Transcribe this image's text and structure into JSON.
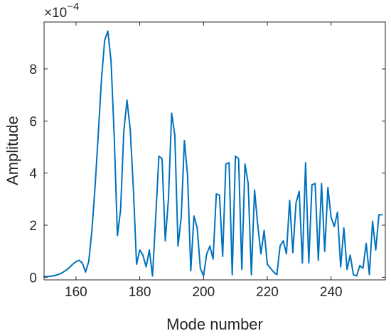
{
  "chart_data": {
    "type": "line",
    "title": "",
    "xlabel": "Mode number",
    "ylabel": "Amplitude",
    "y_exponent": {
      "base": "×10",
      "power": "−4"
    },
    "xlim": [
      150,
      257
    ],
    "ylim": [
      -0.1,
      9.8
    ],
    "xticks": [
      160,
      180,
      200,
      220,
      240
    ],
    "xtick_labels": [
      "160",
      "180",
      "200",
      "220",
      "240"
    ],
    "yticks": [
      0,
      2,
      4,
      6,
      8
    ],
    "ytick_labels": [
      "0",
      "2",
      "4",
      "6",
      "8"
    ],
    "grid": false,
    "line_color": "#0072BD",
    "series": [
      {
        "x": [
          150,
          151,
          152,
          153,
          154,
          155,
          156,
          157,
          158,
          159,
          160,
          161,
          162,
          163,
          164,
          165,
          166,
          167,
          168,
          169,
          170,
          171,
          172,
          173,
          174,
          175,
          176,
          177,
          178,
          179,
          180,
          181,
          182,
          183,
          184,
          185,
          186,
          187,
          188,
          189,
          190,
          191,
          192,
          193,
          194,
          195,
          196,
          197,
          198,
          199,
          200,
          201,
          202,
          203,
          204,
          205,
          206,
          207,
          208,
          209,
          210,
          211,
          212,
          213,
          214,
          215,
          216,
          217,
          218,
          219,
          220,
          221,
          222,
          223,
          224,
          225,
          226,
          227,
          228,
          229,
          230,
          231,
          232,
          233,
          234,
          235,
          236,
          237,
          238,
          239,
          240,
          241,
          242,
          243,
          244,
          245,
          246,
          247,
          248,
          249,
          250,
          251,
          252,
          253,
          254,
          255,
          256
        ],
        "values": [
          0.02,
          0.03,
          0.04,
          0.06,
          0.09,
          0.13,
          0.2,
          0.28,
          0.38,
          0.5,
          0.6,
          0.65,
          0.55,
          0.2,
          0.6,
          1.8,
          3.5,
          5.5,
          7.6,
          9.1,
          9.45,
          8.3,
          5.4,
          1.6,
          2.6,
          5.6,
          6.8,
          5.7,
          3.4,
          0.5,
          1.05,
          0.85,
          0.4,
          1.05,
          0.05,
          2.3,
          4.65,
          4.55,
          1.4,
          3.0,
          6.3,
          5.45,
          1.2,
          2.3,
          5.25,
          3.9,
          0.25,
          2.35,
          1.9,
          0.35,
          0.05,
          0.9,
          1.2,
          0.7,
          3.2,
          3.15,
          0.8,
          4.35,
          4.4,
          0.1,
          4.65,
          4.55,
          0.3,
          4.35,
          3.6,
          0.1,
          3.35,
          2.0,
          0.9,
          1.8,
          0.5,
          0.35,
          0.2,
          0.1,
          1.2,
          1.4,
          0.9,
          2.95,
          0.95,
          2.85,
          3.3,
          0.55,
          4.4,
          0.55,
          3.55,
          3.6,
          0.65,
          3.6,
          1.0,
          3.45,
          2.3,
          1.95,
          2.5,
          0.4,
          1.9,
          0.3,
          0.85,
          0.1,
          0.05,
          0.45,
          0.35,
          1.3,
          0.1,
          2.15,
          1.05,
          2.4,
          2.4
        ]
      }
    ]
  }
}
